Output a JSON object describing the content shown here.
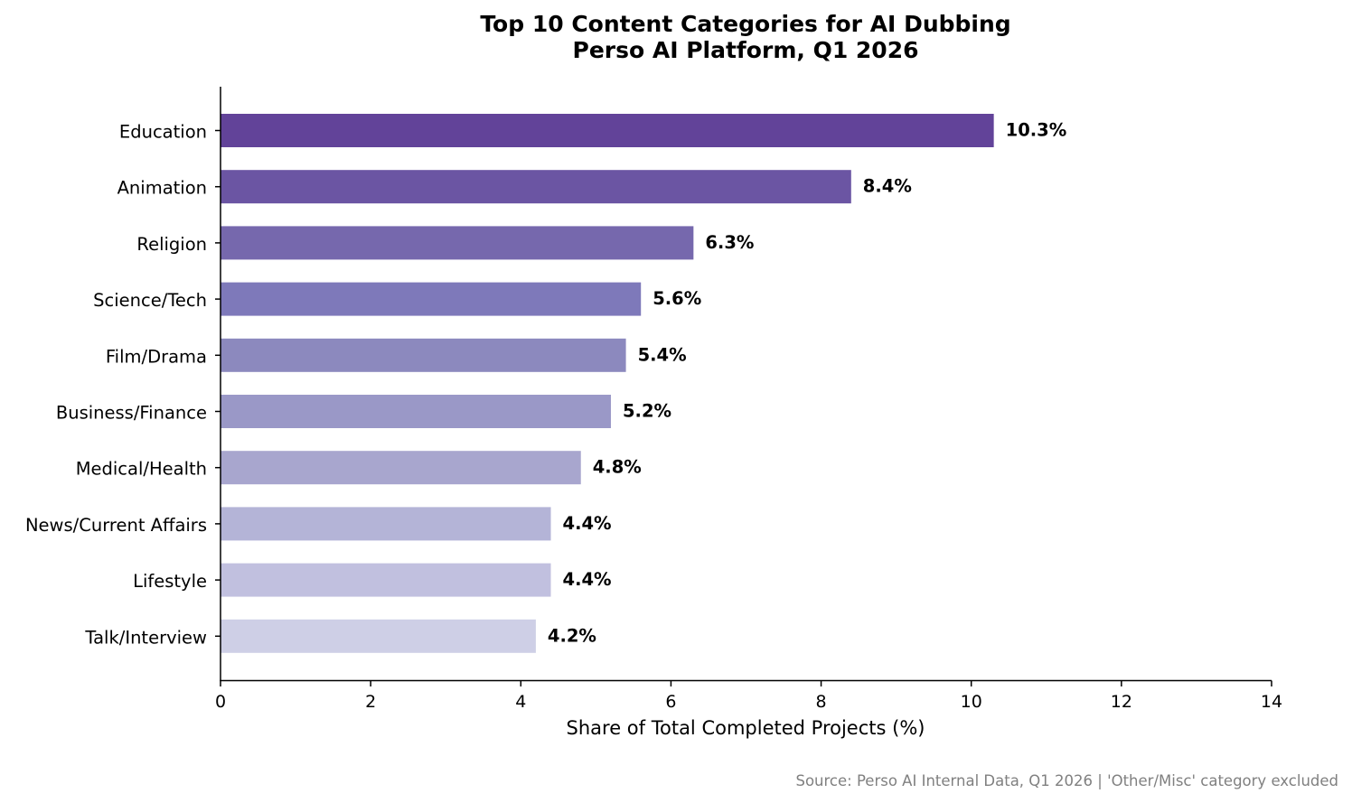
{
  "chart_data": {
    "type": "bar",
    "orientation": "horizontal",
    "title": "Top 10 Content Categories for AI Dubbing",
    "subtitle": "Perso AI Platform, Q1 2026",
    "xlabel": "Share of Total Completed Projects (%)",
    "ylabel": "",
    "xlim": [
      0,
      14
    ],
    "xticks": [
      0,
      2,
      4,
      6,
      8,
      10,
      12,
      14
    ],
    "grid": false,
    "legend": "none",
    "categories": [
      "Education",
      "Animation",
      "Religion",
      "Science/Tech",
      "Film/Drama",
      "Business/Finance",
      "Medical/Health",
      "News/Current Affairs",
      "Lifestyle",
      "Talk/Interview"
    ],
    "values": [
      10.3,
      8.4,
      6.3,
      5.6,
      5.4,
      5.2,
      4.8,
      4.4,
      4.4,
      4.2
    ],
    "value_labels": [
      "10.3%",
      "8.4%",
      "6.3%",
      "5.6%",
      "5.4%",
      "5.2%",
      "4.8%",
      "4.4%",
      "4.4%",
      "4.2%"
    ],
    "colors": [
      "#624399",
      "#6b55a3",
      "#7668ad",
      "#7e79ba",
      "#8c89be",
      "#9a98c7",
      "#a8a6ce",
      "#b4b4d7",
      "#c1c0df",
      "#cecfe6"
    ]
  },
  "source_note": "Source: Perso AI Internal Data, Q1 2026 | 'Other/Misc' category excluded"
}
